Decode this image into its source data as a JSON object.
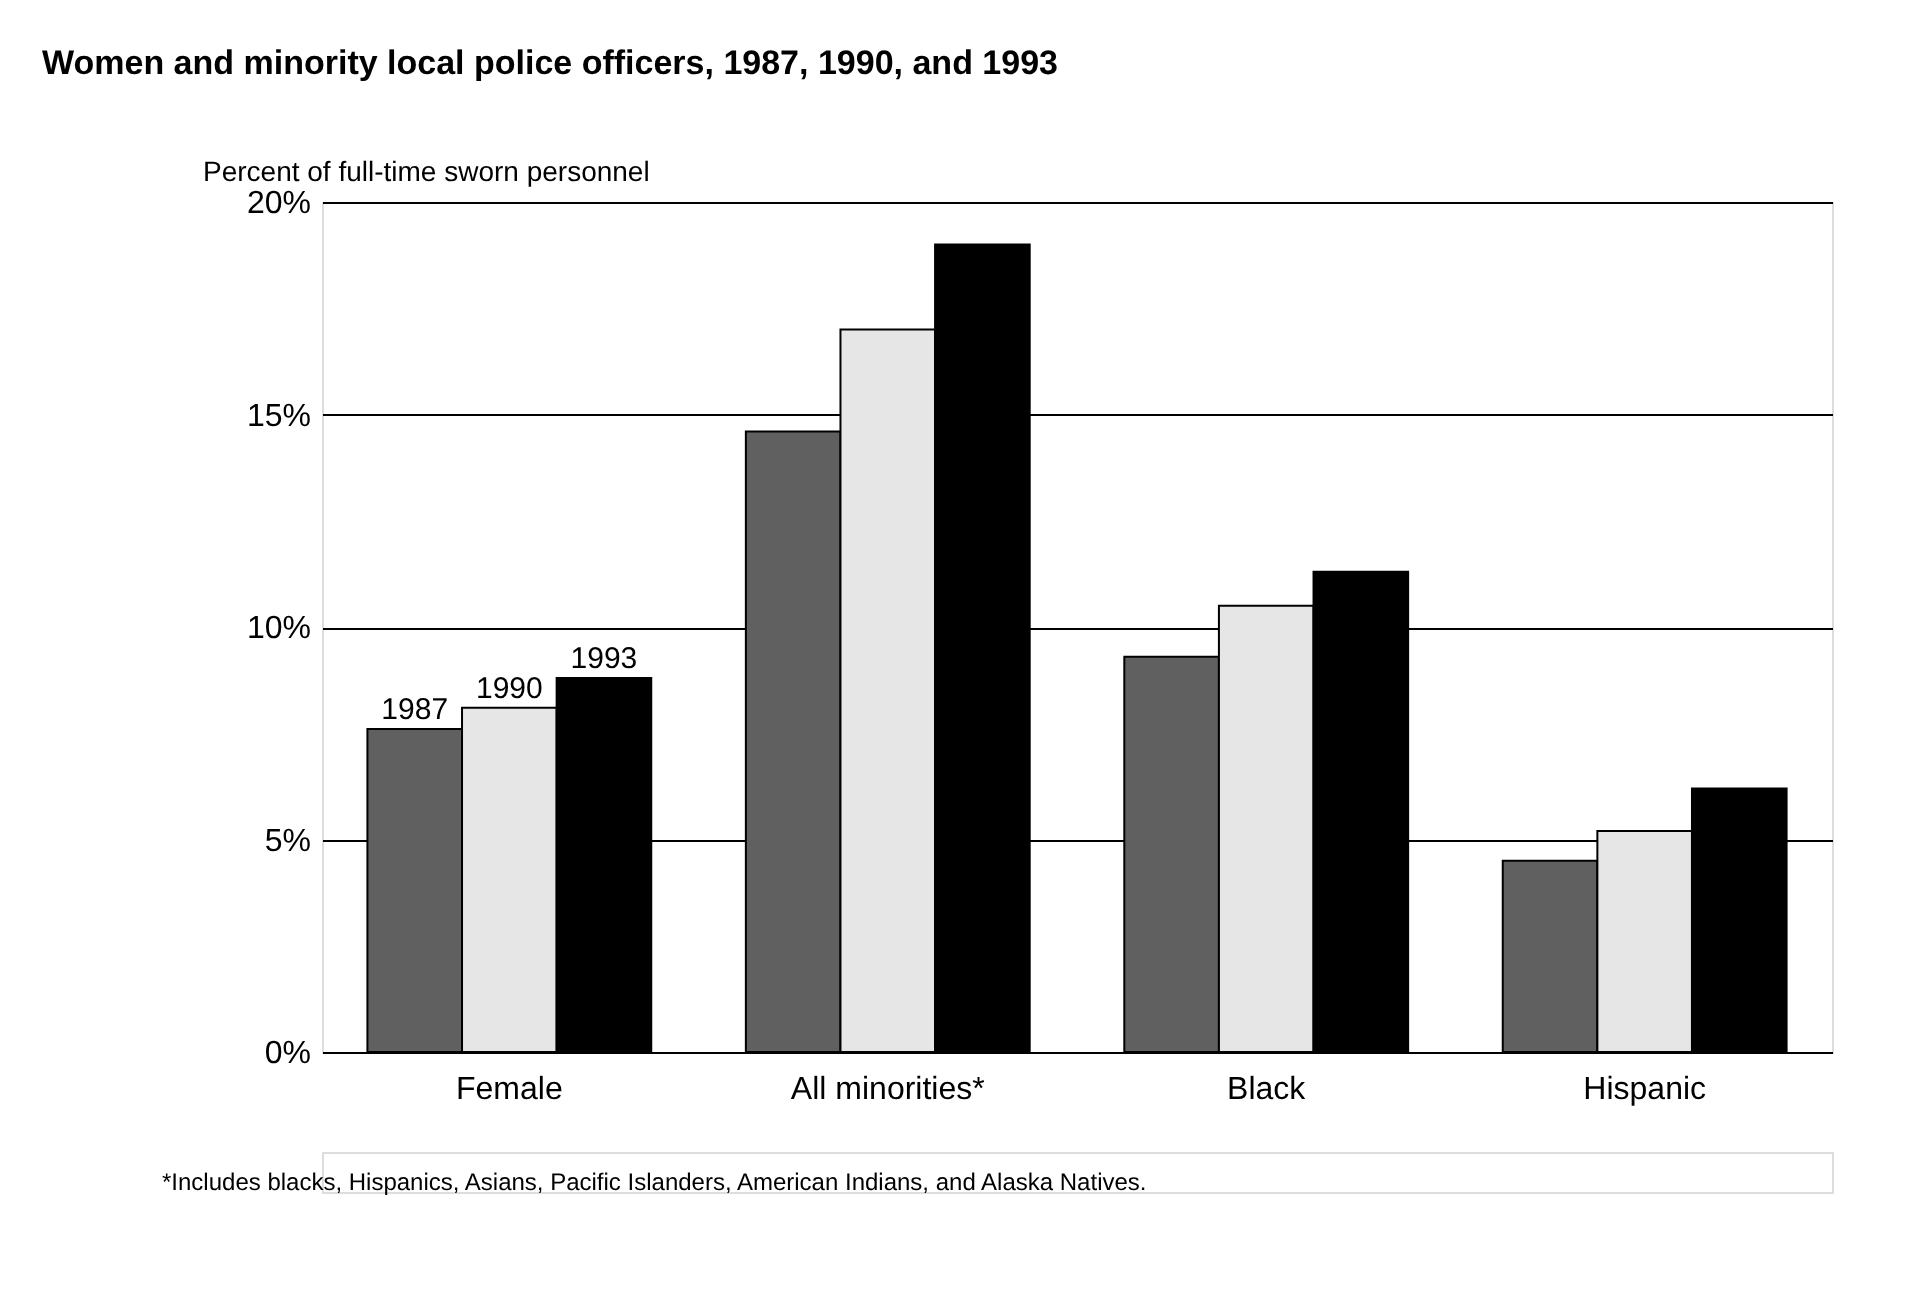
{
  "chart_data": {
    "type": "bar",
    "title": "Women and minority local police officers, 1987, 1990, and 1993",
    "ylabel": "Percent of full-time sworn personnel",
    "categories": [
      "Female",
      "All minorities*",
      "Black",
      "Hispanic"
    ],
    "series": [
      {
        "name": "1987",
        "color": "#606060",
        "values": [
          7.6,
          14.6,
          9.3,
          4.5
        ]
      },
      {
        "name": "1990",
        "color": "#e6e6e6",
        "values": [
          8.1,
          17.0,
          10.5,
          5.2
        ]
      },
      {
        "name": "1993",
        "color": "#000000",
        "values": [
          8.8,
          19.0,
          11.3,
          6.2
        ]
      }
    ],
    "ylim": [
      0,
      20
    ],
    "yticks": [
      {
        "value": 0,
        "label": "0%"
      },
      {
        "value": 5,
        "label": "5%"
      },
      {
        "value": 10,
        "label": "10%"
      },
      {
        "value": 15,
        "label": "15%"
      },
      {
        "value": 20,
        "label": "20%"
      }
    ],
    "grid": "y",
    "legend": false,
    "annotations": [
      "*Includes blacks, Hispanics, Asians, Pacific Islanders, American Indians, and Alaska Natives."
    ]
  }
}
